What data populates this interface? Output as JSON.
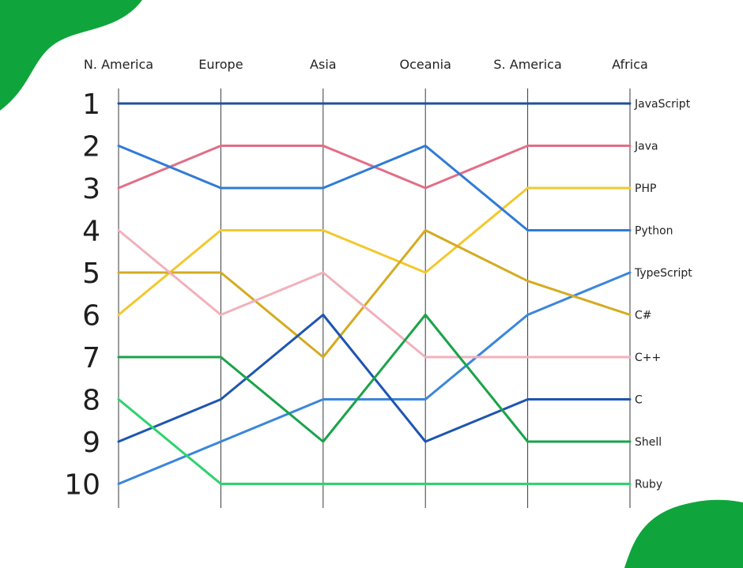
{
  "chart_data": {
    "type": "line",
    "title": "",
    "xlabel": "",
    "ylabel": "",
    "x_position": "top",
    "y_inverted": true,
    "grid": "vertical",
    "legend": "right",
    "categories": [
      "N. America",
      "Europe",
      "Asia",
      "Oceania",
      "S. America",
      "Africa"
    ],
    "ranks": [
      "1",
      "2",
      "3",
      "4",
      "5",
      "6",
      "7",
      "8",
      "9",
      "10"
    ],
    "ylim": [
      1,
      10
    ],
    "series": [
      {
        "name": "JavaScript",
        "color": "#1f4f9f",
        "values": [
          1,
          1,
          1,
          1,
          1,
          1
        ]
      },
      {
        "name": "Java",
        "color": "#e36d86",
        "values": [
          3,
          2,
          2,
          3,
          2,
          2
        ]
      },
      {
        "name": "PHP",
        "color": "#f2c82e",
        "values": [
          6,
          4,
          4,
          5,
          3,
          3
        ]
      },
      {
        "name": "Python",
        "color": "#2f7bd6",
        "values": [
          2,
          3,
          3,
          2,
          4,
          4
        ]
      },
      {
        "name": "TypeScript",
        "color": "#3a86db",
        "values": [
          10,
          9,
          8,
          8,
          6,
          5
        ]
      },
      {
        "name": "C#",
        "color": "#d4ab22",
        "values": [
          5,
          5,
          7,
          4,
          5.2,
          6
        ]
      },
      {
        "name": "C++",
        "color": "#f1b1bc",
        "values": [
          4,
          6,
          5,
          7,
          7,
          7
        ]
      },
      {
        "name": "C",
        "color": "#1e55b0",
        "values": [
          9,
          8,
          6,
          9,
          8,
          8
        ]
      },
      {
        "name": "Shell",
        "color": "#1aa34a",
        "values": [
          7,
          7,
          9,
          6,
          9,
          9
        ]
      },
      {
        "name": "Ruby",
        "color": "#2dd36f",
        "values": [
          8,
          10,
          10,
          10,
          10,
          10
        ]
      }
    ]
  },
  "decor": {
    "blob_color": "#0fa53c"
  }
}
